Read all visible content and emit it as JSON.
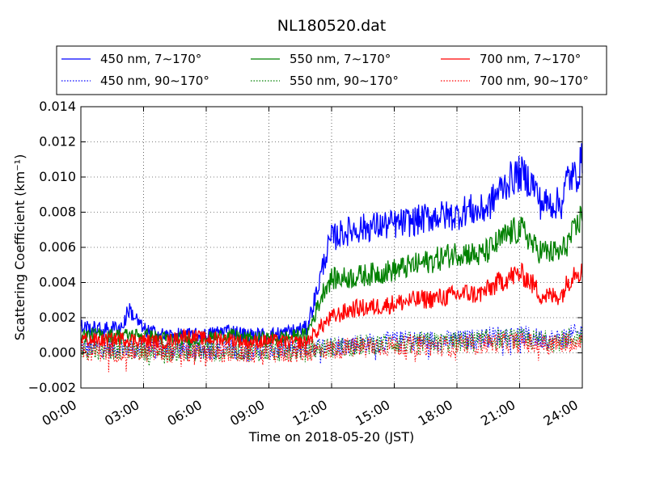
{
  "chart_data": {
    "type": "line",
    "title": "NL180520.dat",
    "xlabel": "Time on 2018-05-20 (JST)",
    "ylabel": "Scattering Coefficient (km⁻¹)",
    "xlim": [
      0,
      24
    ],
    "ylim": [
      -0.002,
      0.014
    ],
    "grid": true,
    "legend_position": "top",
    "x_tick_labels": [
      "00:00",
      "03:00",
      "06:00",
      "09:00",
      "12:00",
      "15:00",
      "18:00",
      "21:00",
      "24:00"
    ],
    "x_tick_values": [
      0,
      3,
      6,
      9,
      12,
      15,
      18,
      21,
      24
    ],
    "y_tick_labels": [
      "−0.002",
      "0.000",
      "0.002",
      "0.004",
      "0.006",
      "0.008",
      "0.010",
      "0.012",
      "0.014"
    ],
    "y_tick_values": [
      -0.002,
      0,
      0.002,
      0.004,
      0.006,
      0.008,
      0.01,
      0.012,
      0.014
    ],
    "series": [
      {
        "name": "450 nm, 7∼170°",
        "color": "#0000ff",
        "style": "solid",
        "x": [
          0,
          1,
          2,
          2.3,
          3,
          4,
          5,
          6,
          7,
          8,
          9,
          10,
          10.8,
          11.3,
          11.7,
          12,
          12.5,
          13,
          14,
          15,
          16,
          17,
          18,
          18.5,
          19,
          19.5,
          20,
          20.5,
          21,
          21.3,
          21.7,
          22,
          22.5,
          23,
          23.3,
          23.7,
          24
        ],
        "y": [
          0.0015,
          0.0013,
          0.0015,
          0.0025,
          0.0013,
          0.001,
          0.001,
          0.001,
          0.0013,
          0.001,
          0.001,
          0.0012,
          0.0014,
          0.0035,
          0.0055,
          0.0065,
          0.0068,
          0.007,
          0.0072,
          0.0073,
          0.0075,
          0.0078,
          0.0078,
          0.0082,
          0.008,
          0.0083,
          0.0092,
          0.0098,
          0.0102,
          0.01,
          0.0095,
          0.0085,
          0.0085,
          0.0085,
          0.01,
          0.01,
          0.011
        ]
      },
      {
        "name": "550 nm, 7∼170°",
        "color": "#008000",
        "style": "solid",
        "x": [
          0,
          1,
          2,
          3,
          4,
          5,
          6,
          7,
          8,
          9,
          10,
          10.8,
          11.3,
          11.7,
          12,
          13,
          14,
          15,
          16,
          17,
          18,
          18.5,
          19,
          19.5,
          20,
          20.5,
          21,
          21.3,
          21.7,
          22,
          22.5,
          23,
          23.3,
          23.7,
          24
        ],
        "y": [
          0.001,
          0.001,
          0.001,
          0.001,
          0.0008,
          0.0008,
          0.0008,
          0.001,
          0.0008,
          0.0008,
          0.0009,
          0.001,
          0.0025,
          0.0038,
          0.0042,
          0.0043,
          0.0045,
          0.0047,
          0.005,
          0.0053,
          0.0057,
          0.0057,
          0.0055,
          0.0058,
          0.0063,
          0.0068,
          0.007,
          0.0068,
          0.006,
          0.0058,
          0.0057,
          0.0057,
          0.0063,
          0.007,
          0.008
        ]
      },
      {
        "name": "700 nm, 7∼170°",
        "color": "#ff0000",
        "style": "solid",
        "x": [
          0,
          1,
          2,
          3,
          4,
          5,
          6,
          7,
          8,
          9,
          10,
          10.8,
          11.5,
          12,
          13,
          14,
          15,
          16,
          17,
          18,
          18.5,
          19,
          19.5,
          20,
          20.5,
          21,
          21.3,
          21.7,
          22,
          22.5,
          23,
          23.3,
          23.7,
          24
        ],
        "y": [
          0.0008,
          0.0007,
          0.0008,
          0.0007,
          0.0006,
          0.001,
          0.0008,
          0.0008,
          0.0006,
          0.0007,
          0.0006,
          0.0006,
          0.0015,
          0.002,
          0.0025,
          0.0026,
          0.0028,
          0.003,
          0.0031,
          0.0033,
          0.0034,
          0.0033,
          0.0036,
          0.004,
          0.0043,
          0.0045,
          0.0043,
          0.0038,
          0.0033,
          0.0032,
          0.0033,
          0.004,
          0.0048,
          0.0045
        ]
      },
      {
        "name": "450 nm, 90∼170°",
        "color": "#0000ff",
        "style": "dotted",
        "x": [
          0,
          2,
          4,
          6,
          8,
          10,
          11,
          12,
          14,
          16,
          18,
          19,
          20,
          21,
          22,
          23,
          24
        ],
        "y": [
          0.0003,
          0.0003,
          0.0002,
          0.0002,
          0.0002,
          0.0002,
          0.0003,
          0.0004,
          0.0006,
          0.0007,
          0.0007,
          0.0008,
          0.001,
          0.001,
          0.0008,
          0.0008,
          0.0012
        ]
      },
      {
        "name": "550 nm, 90∼170°",
        "color": "#008000",
        "style": "dotted",
        "x": [
          0,
          2,
          4,
          6,
          8,
          10,
          11,
          12,
          14,
          16,
          18,
          19,
          20,
          21,
          22,
          23,
          24
        ],
        "y": [
          0.0002,
          0.0002,
          0.0001,
          0.0001,
          0.0001,
          0.0001,
          0.0002,
          0.0003,
          0.0005,
          0.0006,
          0.0006,
          0.0007,
          0.0008,
          0.0008,
          0.0007,
          0.0007,
          0.001
        ]
      },
      {
        "name": "700 nm, 90∼170°",
        "color": "#ff0000",
        "style": "dotted",
        "x": [
          0,
          2,
          4,
          6,
          8,
          10,
          11,
          12,
          14,
          16,
          18,
          19,
          20,
          21,
          22,
          23,
          24
        ],
        "y": [
          0.0001,
          0.0001,
          0.0,
          0.0,
          0.0,
          0.0,
          0.0001,
          0.0002,
          0.0004,
          0.0004,
          0.0004,
          0.0005,
          0.0006,
          0.0006,
          0.0005,
          0.0005,
          0.0008
        ]
      }
    ]
  }
}
